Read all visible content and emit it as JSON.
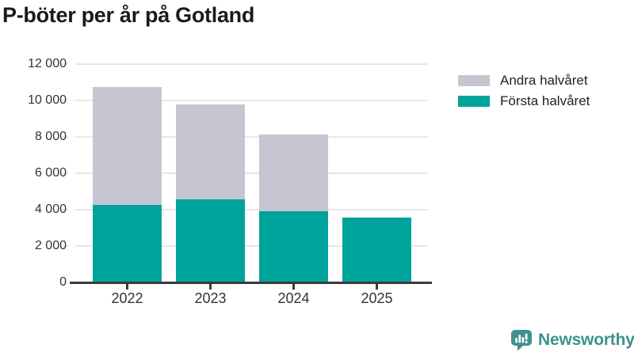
{
  "title": "P-böter per år på Gotland",
  "legend": {
    "position": "right",
    "items": [
      {
        "label": "Andra halvåret",
        "color": "#c7c5d1"
      },
      {
        "label": "Första halvåret",
        "color": "#00a39b"
      }
    ]
  },
  "chart_data": {
    "type": "bar",
    "stacked": true,
    "title": "P-böter per år på Gotland",
    "categories": [
      "2022",
      "2023",
      "2024",
      "2025"
    ],
    "series": [
      {
        "name": "Första halvåret",
        "color": "#00a39b",
        "values": [
          4250,
          4560,
          3930,
          3550
        ]
      },
      {
        "name": "Andra halvåret",
        "color": "#c7c5d1",
        "values": [
          6480,
          5240,
          4180,
          0
        ]
      }
    ],
    "totals": [
      10730,
      9800,
      8110,
      3550
    ],
    "xlabel": "",
    "ylabel": "",
    "ylim": [
      0,
      12000
    ],
    "yticks": [
      0,
      2000,
      4000,
      6000,
      8000,
      10000,
      12000
    ],
    "ytick_labels": [
      "0",
      "2 000",
      "4 000",
      "6 000",
      "8 000",
      "10 000",
      "12 000"
    ],
    "grid": true,
    "legend_position": "right"
  },
  "branding": {
    "logo_text": "Newsworthy",
    "logo_icon": "newsworthy-chart-bubble-icon",
    "color": "#3e918e"
  },
  "colors": {
    "first_half": "#00a39b",
    "second_half": "#c7c5d1",
    "gridline": "#e7e7e7",
    "axis": "#3b3b3b",
    "title_text": "#1b1b1b",
    "tick_text": "#333333",
    "background": "#ffffff"
  }
}
